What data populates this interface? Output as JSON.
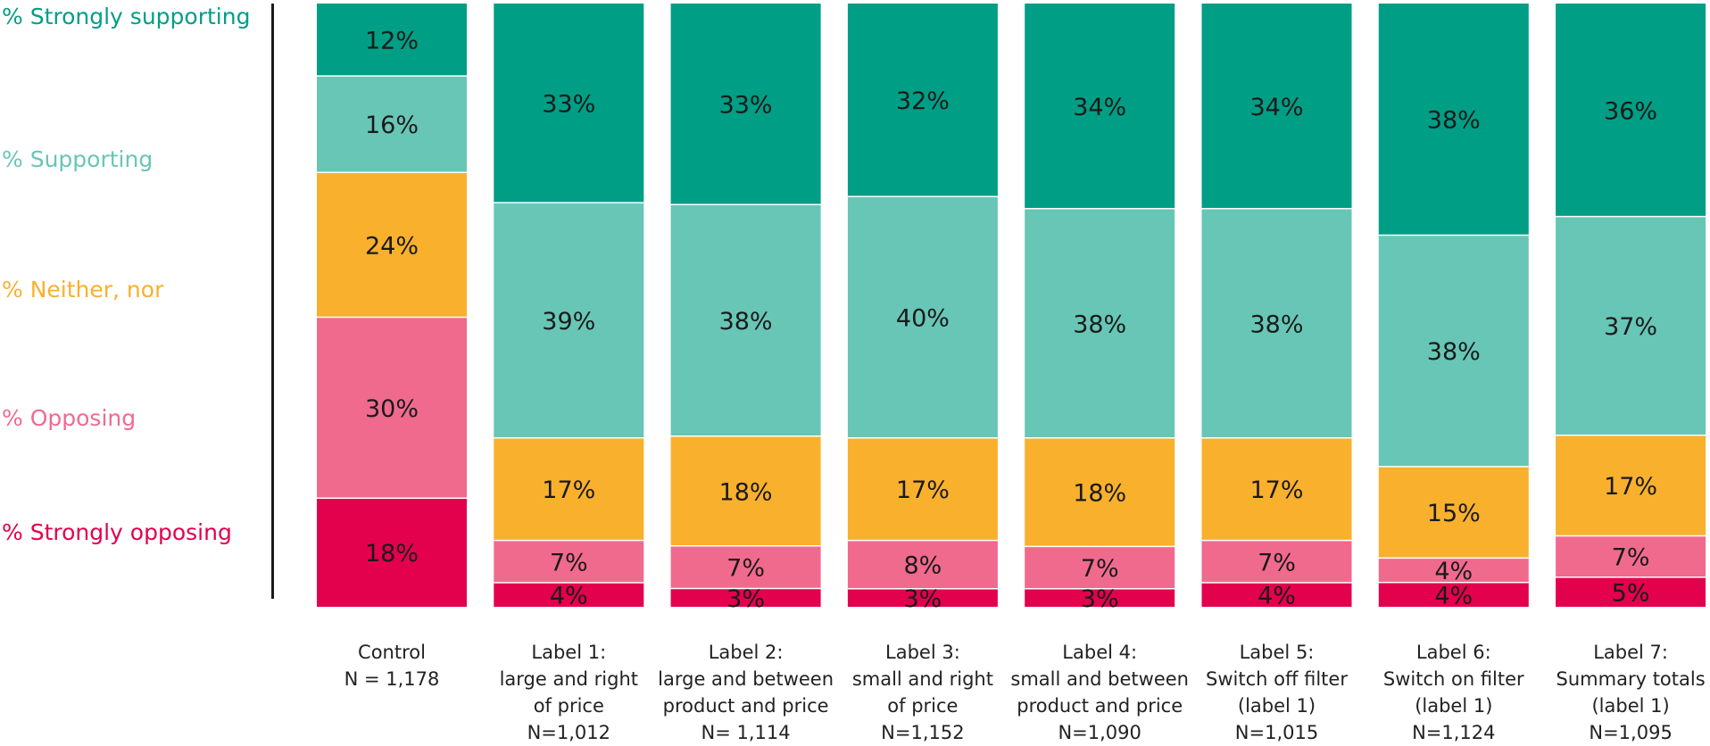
{
  "chart_data": {
    "type": "bar",
    "stacked": true,
    "stack_order": "top-to-bottom",
    "legend_placement": "left",
    "grid": false,
    "ylim": [
      0,
      100
    ],
    "series": [
      {
        "name": "% Strongly supporting",
        "color": "#009e85",
        "values": [
          12,
          33,
          33,
          32,
          34,
          34,
          38,
          36
        ],
        "labels": [
          "12%",
          "33%",
          "33%",
          "32%",
          "34%",
          "34%",
          "38%",
          "36%"
        ]
      },
      {
        "name": "% Supporting",
        "color": "#68c6b6",
        "values": [
          16,
          39,
          38,
          40,
          38,
          38,
          38,
          37
        ],
        "labels": [
          "16%",
          "39%",
          "38%",
          "40%",
          "38%",
          "38%",
          "38%",
          "37%"
        ]
      },
      {
        "name": "% Neither, nor",
        "color": "#f9b02d",
        "values": [
          24,
          17,
          18,
          17,
          18,
          17,
          15,
          17
        ],
        "labels": [
          "24%",
          "17%",
          "18%",
          "17%",
          "18%",
          "17%",
          "15%",
          "17%"
        ]
      },
      {
        "name": "% Opposing",
        "color": "#f06a8e",
        "values": [
          30,
          7,
          7,
          8,
          7,
          7,
          4,
          7
        ],
        "labels": [
          "30%",
          "7%",
          "7%",
          "8%",
          "7%",
          "7%",
          "4%",
          "7%"
        ]
      },
      {
        "name": "% Strongly opposing",
        "color": "#e3004d",
        "values": [
          18,
          4,
          3,
          3,
          3,
          4,
          4,
          5
        ],
        "labels": [
          "18%",
          "4%",
          "3%",
          "3%",
          "3%",
          "4%",
          "4%",
          "5%"
        ]
      }
    ],
    "categories": [
      "Control\nN = 1,178",
      "Label 1:\nlarge and right\nof price\nN=1,012",
      "Label 2:\nlarge and between\nproduct and price\nN= 1,114",
      "Label 3:\nsmall and right\nof price\nN=1,152",
      "Label 4:\nsmall and between\nproduct and price\nN=1,090",
      "Label 5:\nSwitch off filter\n(label 1)\nN=1,015",
      "Label 6:\nSwitch on filter\n(label 1)\nN=1,124",
      "Label 7:\nSummary totals\n(label 1)\nN=1,095"
    ]
  }
}
